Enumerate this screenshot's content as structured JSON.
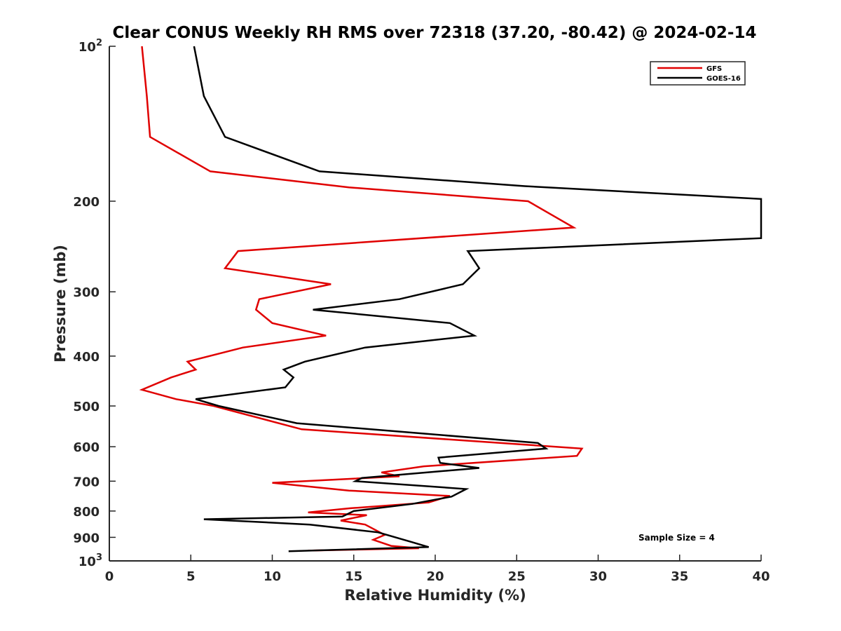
{
  "chart_data": {
    "type": "line",
    "title": "Clear CONUS Weekly RH RMS over 72318 (37.20, -80.42) @ 2024-02-14",
    "xlabel": "Relative Humidity (%)",
    "ylabel": "Pressure (mb)",
    "xlim": [
      0,
      40
    ],
    "ylim": [
      100,
      1000
    ],
    "y_scale": "log",
    "y_reversed": true,
    "grid": false,
    "legend_position": "top-right",
    "x_ticks": [
      "0",
      "5",
      "10",
      "15",
      "20",
      "25",
      "30",
      "35",
      "40"
    ],
    "y_ticks": [
      {
        "value": 100,
        "base": "10",
        "exp": "2"
      },
      {
        "value": 200,
        "label": "200"
      },
      {
        "value": 300,
        "label": "300"
      },
      {
        "value": 400,
        "label": "400"
      },
      {
        "value": 500,
        "label": "500"
      },
      {
        "value": 600,
        "label": "600"
      },
      {
        "value": 700,
        "label": "700"
      },
      {
        "value": 800,
        "label": "800"
      },
      {
        "value": 900,
        "label": "900"
      },
      {
        "value": 1000,
        "base": "10",
        "exp": "3"
      }
    ],
    "series": [
      {
        "name": "GFS",
        "color": "#e00000",
        "points": [
          [
            2.0,
            100
          ],
          [
            2.3,
            125
          ],
          [
            2.5,
            150
          ],
          [
            6.2,
            175
          ],
          [
            14.7,
            188
          ],
          [
            25.7,
            200
          ],
          [
            28.5,
            225
          ],
          [
            7.9,
            250
          ],
          [
            7.1,
            270
          ],
          [
            13.6,
            290
          ],
          [
            9.2,
            310
          ],
          [
            9.0,
            325
          ],
          [
            10.0,
            345
          ],
          [
            13.3,
            365
          ],
          [
            8.2,
            385
          ],
          [
            4.8,
            410
          ],
          [
            5.3,
            425
          ],
          [
            3.8,
            440
          ],
          [
            2.0,
            465
          ],
          [
            4.1,
            485
          ],
          [
            6.4,
            500
          ],
          [
            11.8,
            555
          ],
          [
            29.0,
            605
          ],
          [
            28.7,
            625
          ],
          [
            19.3,
            655
          ],
          [
            16.7,
            673
          ],
          [
            17.8,
            685
          ],
          [
            10.0,
            705
          ],
          [
            14.7,
            730
          ],
          [
            20.9,
            748
          ],
          [
            19.6,
            770
          ],
          [
            14.8,
            790
          ],
          [
            12.2,
            805
          ],
          [
            15.8,
            815
          ],
          [
            14.2,
            835
          ],
          [
            15.7,
            850
          ],
          [
            16.9,
            890
          ],
          [
            16.2,
            910
          ],
          [
            17.3,
            935
          ],
          [
            19.0,
            945
          ],
          [
            12.4,
            955
          ],
          [
            12.2,
            955
          ]
        ]
      },
      {
        "name": "GOES-16",
        "color": "#000000",
        "points": [
          [
            5.2,
            100
          ],
          [
            5.8,
            125
          ],
          [
            7.1,
            150
          ],
          [
            12.9,
            175
          ],
          [
            25.5,
            187
          ],
          [
            40.0,
            198
          ],
          [
            40.0,
            236
          ],
          [
            22.0,
            250
          ],
          [
            22.7,
            270
          ],
          [
            21.7,
            290
          ],
          [
            17.8,
            310
          ],
          [
            12.5,
            325
          ],
          [
            20.9,
            345
          ],
          [
            22.4,
            365
          ],
          [
            15.7,
            385
          ],
          [
            12.0,
            410
          ],
          [
            10.7,
            425
          ],
          [
            11.3,
            440
          ],
          [
            10.8,
            460
          ],
          [
            5.3,
            485
          ],
          [
            6.7,
            500
          ],
          [
            11.5,
            540
          ],
          [
            26.3,
            590
          ],
          [
            26.8,
            605
          ],
          [
            20.2,
            630
          ],
          [
            20.3,
            645
          ],
          [
            22.7,
            660
          ],
          [
            15.5,
            690
          ],
          [
            15.1,
            700
          ],
          [
            21.9,
            725
          ],
          [
            21.0,
            750
          ],
          [
            18.6,
            775
          ],
          [
            15.0,
            800
          ],
          [
            14.3,
            820
          ],
          [
            5.8,
            830
          ],
          [
            12.3,
            850
          ],
          [
            16.5,
            880
          ],
          [
            18.6,
            920
          ],
          [
            19.6,
            940
          ],
          [
            11.0,
            958
          ]
        ]
      }
    ],
    "legend": [
      {
        "label": "GFS",
        "color": "#e00000"
      },
      {
        "label": "GOES-16",
        "color": "#000000"
      }
    ],
    "annotation": "Sample Size = 4"
  }
}
